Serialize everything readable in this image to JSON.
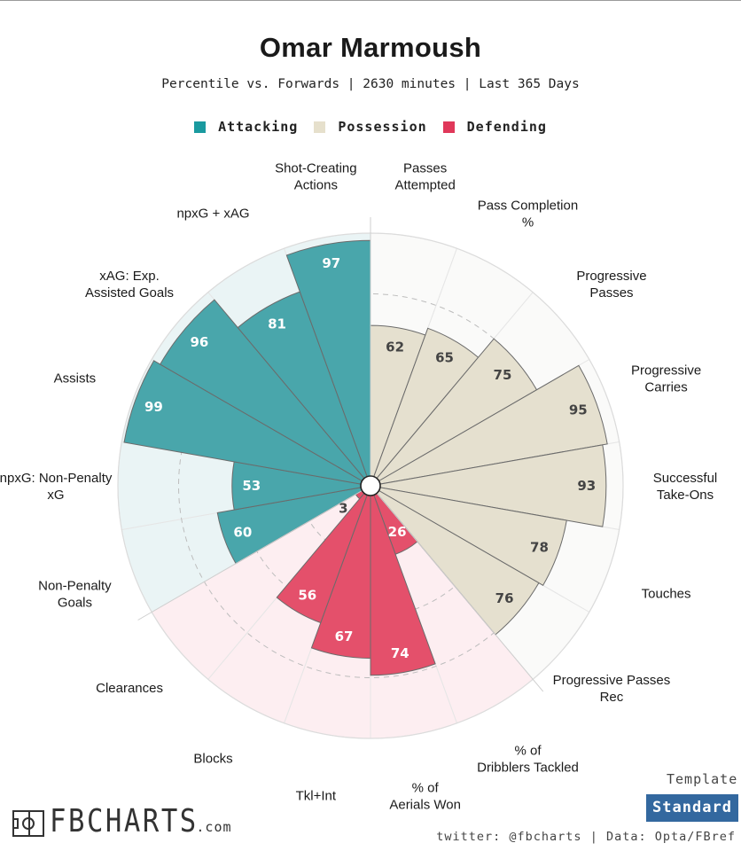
{
  "header": {
    "title": "Omar Marmoush",
    "subtitle": "Percentile vs. Forwards | 2630 minutes | Last 365 Days"
  },
  "legend": [
    {
      "label": "Attacking",
      "color": "#1a9a9f"
    },
    {
      "label": "Possession",
      "color": "#e6e0cc"
    },
    {
      "label": "Defending",
      "color": "#e0385a"
    }
  ],
  "chart_data": {
    "type": "polar-bar",
    "title": "Omar Marmoush",
    "subtitle": "Percentile vs. Forwards | 2630 minutes | Last 365 Days",
    "rlim": [
      0,
      100
    ],
    "series": [
      {
        "name": "Attacking",
        "color": "#49a6ab",
        "background": "#eaf4f5",
        "categories": [
          "Non-Penalty Goals",
          "npxG: Non-Penalty xG",
          "Assists",
          "xAG: Exp. Assisted Goals",
          "npxG + xAG",
          "Shot-Creating Actions"
        ],
        "values": [
          60,
          53,
          99,
          96,
          81,
          97
        ]
      },
      {
        "name": "Possession",
        "color": "#e5e0cf",
        "background": "#fafaf9",
        "categories": [
          "Passes Attempted",
          "Pass Completion %",
          "Progressive Passes",
          "Progressive Carries",
          "Successful Take-Ons",
          "Touches",
          "Progressive Passes Rec"
        ],
        "values": [
          62,
          65,
          75,
          95,
          93,
          78,
          76
        ]
      },
      {
        "name": "Defending",
        "color": "#e4506b",
        "background": "#fdeef1",
        "categories": [
          "% of Dribblers Tackled",
          "% of Aerials Won",
          "Tkl+Int",
          "Blocks",
          "Clearances"
        ],
        "values": [
          26,
          74,
          67,
          56,
          3
        ]
      }
    ]
  },
  "footer": {
    "template_label": "Template",
    "template_value": "Standard",
    "credit": "twitter: @fbcharts | Data: Opta/FBref",
    "logo_text": "FBCHARTS",
    "logo_suffix": ".com"
  }
}
